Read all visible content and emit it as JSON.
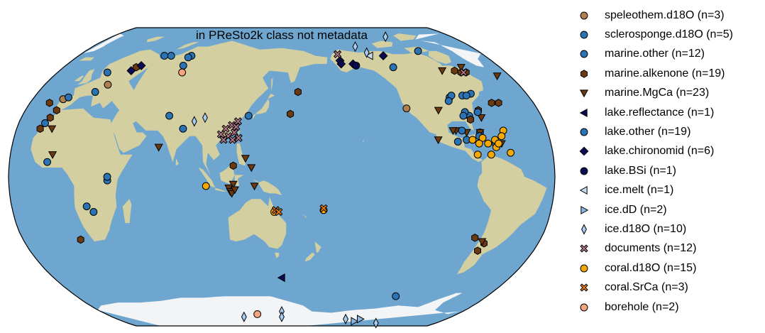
{
  "map": {
    "title": "in PReSto2k class not metadata",
    "projection": "Robinson",
    "central_longitude": 150,
    "colors": {
      "ocean": "#6fa6cf",
      "land": "#d3cfa0",
      "ice": "#f2f4f6"
    }
  },
  "legend": [
    {
      "id": "speleothem",
      "label": "speleothem.d18O (n=3)",
      "marker": "circle",
      "color": "#b07f4f"
    },
    {
      "id": "sclerosponge",
      "label": "sclerosponge.d18O (n=5)",
      "marker": "circle",
      "color": "#2a73b5"
    },
    {
      "id": "marine_other",
      "label": "marine.other (n=12)",
      "marker": "circle",
      "color": "#2a73b5"
    },
    {
      "id": "alkenone",
      "label": "marine.alkenone (n=19)",
      "marker": "hexagon",
      "color": "#6b3a10"
    },
    {
      "id": "mgca",
      "label": "marine.MgCa (n=23)",
      "marker": "triangle-down",
      "color": "#6b3a10"
    },
    {
      "id": "reflectance",
      "label": "lake.reflectance (n=1)",
      "marker": "triangle-left",
      "color": "#0b0b55"
    },
    {
      "id": "lake_other",
      "label": "lake.other (n=19)",
      "marker": "circle",
      "color": "#2a73b5"
    },
    {
      "id": "chironomid",
      "label": "lake.chironomid (n=6)",
      "marker": "diamond",
      "color": "#0b0b55"
    },
    {
      "id": "bsi",
      "label": "lake.BSi (n=1)",
      "marker": "circle",
      "color": "#0b0b55"
    },
    {
      "id": "icemelt",
      "label": "ice.melt (n=1)",
      "marker": "triangle-left",
      "color": "#c8dcf0"
    },
    {
      "id": "icedd",
      "label": "ice.dD (n=2)",
      "marker": "triangle-right",
      "color": "#8ab8e6"
    },
    {
      "id": "iced18o",
      "label": "ice.d18O (n=10)",
      "marker": "thin-diamond",
      "color": "#a8cdf0"
    },
    {
      "id": "documents",
      "label": "documents (n=12)",
      "marker": "x",
      "color": "#b3778a"
    },
    {
      "id": "corald18o",
      "label": "coral.d18O (n=15)",
      "marker": "circle",
      "color": "#f5a800"
    },
    {
      "id": "coralsrca",
      "label": "coral.SrCa (n=3)",
      "marker": "x",
      "color": "#f07a10"
    },
    {
      "id": "borehole",
      "label": "borehole (n=2)",
      "marker": "circle",
      "color": "#f7a580"
    }
  ],
  "sites": [
    {
      "t": "speleothem",
      "lon": 18,
      "lat": 50
    },
    {
      "t": "speleothem",
      "lon": -122,
      "lat": 37
    },
    {
      "t": "speleothem",
      "lon": -8,
      "lat": 42
    },
    {
      "t": "sclerosponge",
      "lon": -76,
      "lat": 24
    },
    {
      "t": "sclerosponge",
      "lon": -86,
      "lat": 20
    },
    {
      "t": "sclerosponge",
      "lon": -71,
      "lat": 45
    },
    {
      "t": "sclerosponge",
      "lon": -110,
      "lat": -66
    },
    {
      "t": "sclerosponge",
      "lon": -67,
      "lat": 18
    },
    {
      "t": "marine_other",
      "lon": -5,
      "lat": 43
    },
    {
      "t": "marine_other",
      "lon": 10,
      "lat": 57
    },
    {
      "t": "marine_other",
      "lon": 52,
      "lat": 67
    },
    {
      "t": "marine_other",
      "lon": 46,
      "lat": 67
    },
    {
      "t": "marine_other",
      "lon": 72,
      "lat": 33
    },
    {
      "t": "marine_other",
      "lon": 127,
      "lat": 33
    },
    {
      "t": "marine_other",
      "lon": -12,
      "lat": 29
    },
    {
      "t": "marine_other",
      "lon": 35,
      "lat": -2
    },
    {
      "t": "marine_other",
      "lon": 20,
      "lat": -16
    },
    {
      "t": "marine_other",
      "lon": 24,
      "lat": -19
    },
    {
      "t": "marine_other",
      "lon": -5,
      "lat": 8
    },
    {
      "t": "marine_other",
      "lon": -80,
      "lat": 33
    },
    {
      "t": "alkenone",
      "lon": 162,
      "lat": 46
    },
    {
      "t": "alkenone",
      "lon": 156,
      "lat": 34
    },
    {
      "t": "alkenone",
      "lon": 30,
      "lat": 60
    },
    {
      "t": "alkenone",
      "lon": 10,
      "lat": -34
    },
    {
      "t": "alkenone",
      "lon": 118,
      "lat": 6
    },
    {
      "t": "alkenone",
      "lon": -70,
      "lat": 58
    },
    {
      "t": "alkenone",
      "lon": -66,
      "lat": 57
    },
    {
      "t": "alkenone",
      "lon": -62,
      "lat": 57
    },
    {
      "t": "alkenone",
      "lon": -8,
      "lat": 36
    },
    {
      "t": "alkenone",
      "lon": -14,
      "lat": 26
    },
    {
      "t": "alkenone",
      "lon": -10,
      "lat": 32
    },
    {
      "t": "alkenone",
      "lon": -60,
      "lat": 40
    },
    {
      "t": "alkenone",
      "lon": -55,
      "lat": 40
    },
    {
      "t": "alkenone",
      "lon": -68,
      "lat": -36
    },
    {
      "t": "alkenone",
      "lon": -70,
      "lat": -40
    },
    {
      "t": "alkenone",
      "lon": -76,
      "lat": -33
    },
    {
      "t": "alkenone",
      "lon": -80,
      "lat": 31
    },
    {
      "t": "alkenone",
      "lon": -72,
      "lat": 36
    },
    {
      "t": "alkenone",
      "lon": -16,
      "lat": 40
    },
    {
      "t": "mgca",
      "lon": 68,
      "lat": 16
    },
    {
      "t": "mgca",
      "lon": -80,
      "lat": 58
    },
    {
      "t": "mgca",
      "lon": -92,
      "lat": 25
    },
    {
      "t": "mgca",
      "lon": -94,
      "lat": 25
    },
    {
      "t": "mgca",
      "lon": -85,
      "lat": 24
    },
    {
      "t": "mgca",
      "lon": -72,
      "lat": 32
    },
    {
      "t": "mgca",
      "lon": -63,
      "lat": 18
    },
    {
      "t": "mgca",
      "lon": -2,
      "lat": 12
    },
    {
      "t": "mgca",
      "lon": -40,
      "lat": 55
    },
    {
      "t": "mgca",
      "lon": 126,
      "lat": 10
    },
    {
      "t": "mgca",
      "lon": 130,
      "lat": 5
    },
    {
      "t": "mgca",
      "lon": 118,
      "lat": -4
    },
    {
      "t": "mgca",
      "lon": 115,
      "lat": -6
    },
    {
      "t": "mgca",
      "lon": 116,
      "lat": -8
    },
    {
      "t": "mgca",
      "lon": 117,
      "lat": -9
    },
    {
      "t": "mgca",
      "lon": 119,
      "lat": -7
    },
    {
      "t": "mgca",
      "lon": 132,
      "lat": -5
    },
    {
      "t": "mgca",
      "lon": -105,
      "lat": 20
    },
    {
      "t": "mgca",
      "lon": -76,
      "lat": 24
    },
    {
      "t": "mgca",
      "lon": -62,
      "lat": 60
    },
    {
      "t": "mgca",
      "lon": -70,
      "lat": -35
    },
    {
      "t": "mgca",
      "lon": -100,
      "lat": 36
    },
    {
      "t": "mgca",
      "lon": -6,
      "lat": 26
    },
    {
      "t": "reflectance",
      "lon": 150,
      "lat": -55
    },
    {
      "t": "lake_other",
      "lon": -85,
      "lat": 70
    },
    {
      "t": "lake_other",
      "lon": -118,
      "lat": 60
    },
    {
      "t": "lake_other",
      "lon": -88,
      "lat": 43
    },
    {
      "t": "lake_other",
      "lon": -86,
      "lat": 44
    },
    {
      "t": "lake_other",
      "lon": -90,
      "lat": 41
    },
    {
      "t": "lake_other",
      "lon": -78,
      "lat": 44
    },
    {
      "t": "lake_other",
      "lon": -75,
      "lat": 44
    },
    {
      "t": "lake_other",
      "lon": -82,
      "lat": 35
    },
    {
      "t": "lake_other",
      "lon": -84,
      "lat": 33
    },
    {
      "t": "lake_other",
      "lon": -92,
      "lat": 19
    },
    {
      "t": "lake_other",
      "lon": -77,
      "lat": 22
    },
    {
      "t": "lake_other",
      "lon": -73,
      "lat": 35
    },
    {
      "t": "lake_other",
      "lon": -88,
      "lat": 25
    },
    {
      "t": "lake_other",
      "lon": 68,
      "lat": 61
    },
    {
      "t": "lake_other",
      "lon": 70,
      "lat": 67
    },
    {
      "t": "lake_other",
      "lon": 68,
      "lat": 66
    },
    {
      "t": "lake_other",
      "lon": 83,
      "lat": 26
    },
    {
      "t": "lake_other",
      "lon": 12,
      "lat": 46
    },
    {
      "t": "lake_other",
      "lon": 35,
      "lat": 0
    },
    {
      "t": "chironomid",
      "lon": 28,
      "lat": 58
    },
    {
      "t": "chironomid",
      "lon": 33,
      "lat": 61
    },
    {
      "t": "chironomid",
      "lon": -160,
      "lat": 64
    },
    {
      "t": "chironomid",
      "lon": -160,
      "lat": 62
    },
    {
      "t": "chironomid",
      "lon": -150,
      "lat": 62
    },
    {
      "t": "chironomid",
      "lon": -120,
      "lat": 67
    },
    {
      "t": "bsi",
      "lon": -148,
      "lat": 61
    },
    {
      "t": "icemelt",
      "lon": -132,
      "lat": 67
    },
    {
      "t": "icedd",
      "lon": -128,
      "lat": -84
    },
    {
      "t": "icedd",
      "lon": -124,
      "lat": -82
    },
    {
      "t": "iced18o",
      "lon": -140,
      "lat": 73
    },
    {
      "t": "iced18o",
      "lon": -133,
      "lat": 69
    },
    {
      "t": "iced18o",
      "lon": -100,
      "lat": 80
    },
    {
      "t": "iced18o",
      "lon": 90,
      "lat": 30
    },
    {
      "t": "iced18o",
      "lon": 97,
      "lat": 32
    },
    {
      "t": "iced18o",
      "lon": -140,
      "lat": -82
    },
    {
      "t": "iced18o",
      "lon": 110,
      "lat": -80
    },
    {
      "t": "iced18o",
      "lon": 150,
      "lat": -76
    },
    {
      "t": "iced18o",
      "lon": 150,
      "lat": -80
    },
    {
      "t": "iced18o",
      "lon": -100,
      "lat": -86
    },
    {
      "t": "documents",
      "lon": 116,
      "lat": 28
    },
    {
      "t": "documents",
      "lon": 118,
      "lat": 24
    },
    {
      "t": "documents",
      "lon": 112,
      "lat": 26
    },
    {
      "t": "documents",
      "lon": 114,
      "lat": 22
    },
    {
      "t": "documents",
      "lon": 120,
      "lat": 30
    },
    {
      "t": "documents",
      "lon": 111,
      "lat": 20
    },
    {
      "t": "documents",
      "lon": 109,
      "lat": 23
    },
    {
      "t": "documents",
      "lon": 117,
      "lat": 20
    },
    {
      "t": "documents",
      "lon": 119,
      "lat": 27
    },
    {
      "t": "documents",
      "lon": 121,
      "lat": 21
    },
    {
      "t": "documents",
      "lon": -160,
      "lat": 68
    },
    {
      "t": "documents",
      "lon": -64,
      "lat": 57
    },
    {
      "t": "corald18o",
      "lon": 100,
      "lat": -5
    },
    {
      "t": "corald18o",
      "lon": -75,
      "lat": 21
    },
    {
      "t": "corald18o",
      "lon": -60,
      "lat": 25
    },
    {
      "t": "corald18o",
      "lon": -62,
      "lat": 22
    },
    {
      "t": "corald18o",
      "lon": -58,
      "lat": 13
    },
    {
      "t": "corald18o",
      "lon": -80,
      "lat": 12
    },
    {
      "t": "corald18o",
      "lon": -67,
      "lat": 20
    },
    {
      "t": "corald18o",
      "lon": -72,
      "lat": 18
    },
    {
      "t": "corald18o",
      "lon": -78,
      "lat": 18
    },
    {
      "t": "corald18o",
      "lon": -71,
      "lat": 12
    },
    {
      "t": "corald18o",
      "lon": -67,
      "lat": 16
    },
    {
      "t": "corald18o",
      "lon": -65,
      "lat": 18
    },
    {
      "t": "corald18o",
      "lon": -82,
      "lat": 20
    },
    {
      "t": "corald18o",
      "lon": 145,
      "lat": -19
    },
    {
      "t": "corald18o",
      "lon": 178,
      "lat": -18
    },
    {
      "t": "coralsrca",
      "lon": 146,
      "lat": -18
    },
    {
      "t": "coralsrca",
      "lon": 148,
      "lat": -19
    },
    {
      "t": "coralsrca",
      "lon": 178,
      "lat": -17
    },
    {
      "t": "borehole",
      "lon": 70,
      "lat": 57
    },
    {
      "t": "borehole",
      "lon": 125,
      "lat": -78
    }
  ]
}
